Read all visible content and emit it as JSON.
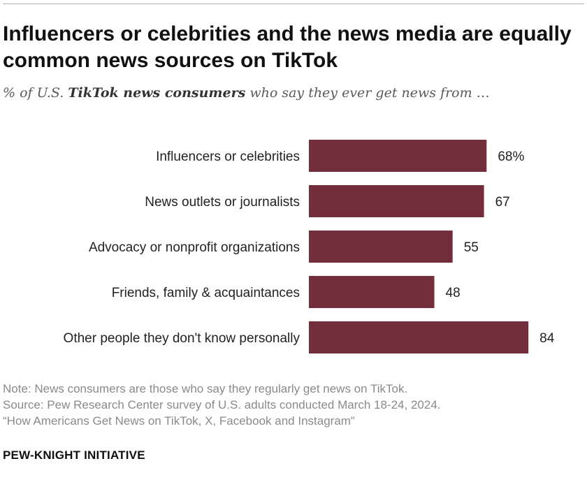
{
  "header": {
    "title": "Influencers or celebrities and the news media are equally common news sources on TikTok",
    "subtitle_prefix": "% of U.S.",
    "subtitle_bold": "TikTok news consumers",
    "subtitle_suffix": "who say they ever get news from …"
  },
  "chart_data": {
    "type": "bar",
    "orientation": "horizontal",
    "title": "Influencers or celebrities and the news media are equally common news sources on TikTok",
    "categories": [
      "Influencers or celebrities",
      "News outlets or journalists",
      "Advocacy or nonprofit organizations",
      "Friends, family & acquaintances",
      "Other people they don't know personally"
    ],
    "values": [
      68,
      67,
      55,
      48,
      84
    ],
    "value_labels": [
      "68%",
      "67",
      "55",
      "48",
      "84"
    ],
    "xlim": [
      0,
      100
    ],
    "xlabel": "",
    "ylabel": "",
    "bar_color": "#722f3b"
  },
  "footer": {
    "note": "Note: News consumers are those who say they regularly get news on TikTok.",
    "source": "Source: Pew Research Center survey of U.S. adults conducted March 18-24, 2024.",
    "report": "“How Americans Get News on TikTok, X, Facebook and Instagram”",
    "brand": "PEW-KNIGHT INITIATIVE"
  }
}
